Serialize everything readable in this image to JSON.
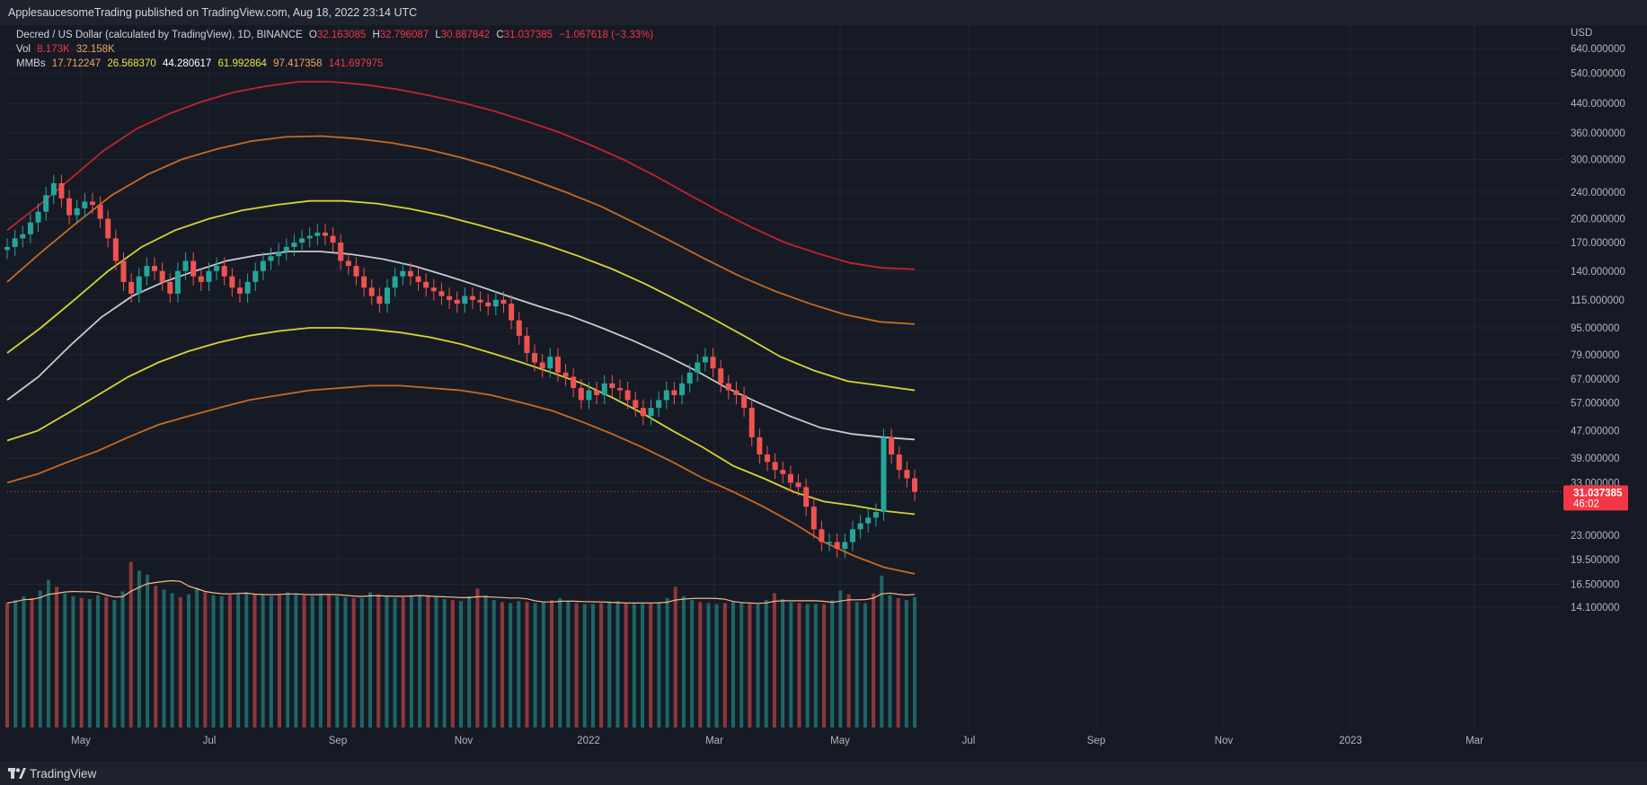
{
  "header": {
    "published": "ApplesaucesomeTrading published on TradingView.com, Aug 18, 2022 23:14 UTC"
  },
  "legend": {
    "symbol": "Decred / US Dollar (calculated by TradingView), 1D, BINANCE",
    "o_label": "O",
    "o": "32.163085",
    "h_label": "H",
    "h": "32.796087",
    "l_label": "L",
    "l": "30.887842",
    "c_label": "C",
    "c": "31.037385",
    "change": "−1.067618 (−3.33%)",
    "vol_label": "Vol",
    "vol1": "8.173K",
    "vol2": "32.158K",
    "mmbs_label": "MMBs",
    "mmbs": [
      "17.712247",
      "26.568370",
      "44.280617",
      "61.992864",
      "97.417358",
      "141.697975"
    ]
  },
  "price_axis": {
    "currency": "USD",
    "last_price": "31.037385",
    "countdown": "46:02"
  },
  "branding": {
    "name": "TradingView"
  },
  "colors": {
    "background": "#161a25",
    "up": "#26a69a",
    "down": "#ef5350",
    "band_red": "#c2242c",
    "band_orange": "#c96a1e",
    "band_yellow": "#d6d431",
    "band_white": "#c9c9d1",
    "price_line": "#f23645",
    "volume_ma": "#f5b78a"
  },
  "chart_data": {
    "type": "candlestick",
    "scale": "log",
    "y_ticks": [
      "640.000000",
      "540.000000",
      "440.000000",
      "360.000000",
      "300.000000",
      "240.000000",
      "200.000000",
      "170.000000",
      "140.000000",
      "115.000000",
      "95.000000",
      "79.000000",
      "67.000000",
      "57.000000",
      "47.000000",
      "39.000000",
      "33.000000",
      "23.000000",
      "19.500000",
      "16.500000",
      "14.100000"
    ],
    "x_ticks": [
      "May",
      "Jul",
      "Sep",
      "Nov",
      "2022",
      "Mar",
      "May",
      "Jul",
      "Sep",
      "Nov",
      "2023",
      "Mar"
    ],
    "last_price": 31.037385,
    "series": [
      {
        "name": "Decred / US Dollar",
        "values": [
          165,
          175,
          180,
          195,
          210,
          235,
          255,
          230,
          205,
          215,
          225,
          220,
          200,
          175,
          150,
          130,
          120,
          135,
          145,
          140,
          130,
          120,
          140,
          150,
          135,
          130,
          140,
          145,
          135,
          125,
          120,
          130,
          140,
          150,
          155,
          160,
          165,
          170,
          175,
          178,
          182,
          178,
          170,
          150,
          145,
          135,
          125,
          118,
          112,
          125,
          135,
          140,
          135,
          130,
          125,
          122,
          118,
          115,
          112,
          118,
          115,
          113,
          110,
          115,
          112,
          100,
          90,
          80,
          75,
          72,
          78,
          70,
          68,
          63,
          58,
          62,
          60,
          65,
          63,
          62,
          58,
          55,
          52,
          55,
          58,
          62,
          60,
          65,
          70,
          75,
          78,
          72,
          65,
          62,
          60,
          55,
          45,
          40,
          38,
          36,
          35,
          33,
          32,
          28,
          24,
          22,
          22,
          21,
          22,
          24,
          25,
          26,
          27,
          45,
          40,
          36,
          34,
          31
        ]
      },
      {
        "name": "Volume",
        "values": [
          14.5,
          14.8,
          15.2,
          15.0,
          15.8,
          17.0,
          16.2,
          15.5,
          15.2,
          15.0,
          14.9,
          15.3,
          15.1,
          14.8,
          15.7,
          19.2,
          18.1,
          17.6,
          16.3,
          15.9,
          15.5,
          15.1,
          15.4,
          16.1,
          15.6,
          15.3,
          15.2,
          15.3,
          15.5,
          15.6,
          15.4,
          15.3,
          15.2,
          15.4,
          15.6,
          15.5,
          15.3,
          15.2,
          15.4,
          15.3,
          15.2,
          15.1,
          15.0,
          15.0,
          15.6,
          15.4,
          15.2,
          15.0,
          15.1,
          15.2,
          15.3,
          15.3,
          15.1,
          14.9,
          14.8,
          14.7,
          15.2,
          16.0,
          15.3,
          14.8,
          14.6,
          14.5,
          14.7,
          14.6,
          14.5,
          14.6,
          14.8,
          15.0,
          14.7,
          14.5,
          14.4,
          14.4,
          14.5,
          14.6,
          14.7,
          14.5,
          14.4,
          14.4,
          14.5,
          14.6,
          15.0,
          16.2,
          15.2,
          14.8,
          14.6,
          14.5,
          14.4,
          14.5,
          14.6,
          14.5,
          14.4,
          14.4,
          14.8,
          15.5,
          14.9,
          14.6,
          14.5,
          14.4,
          14.4,
          14.4,
          14.8,
          15.8,
          15.4,
          14.6,
          14.5,
          15.5,
          17.5,
          15.3,
          15.0,
          14.8,
          15.1
        ]
      },
      {
        "name": "MMBs 17.712247",
        "values": [
          33,
          35,
          38,
          41,
          45,
          49,
          52,
          55,
          58,
          60,
          62,
          63,
          64,
          64,
          63,
          62,
          60,
          57,
          54,
          50,
          46,
          42,
          38,
          34,
          31,
          28,
          25,
          22,
          20,
          18.5,
          17.7
        ]
      },
      {
        "name": "MMBs 26.568370",
        "values": [
          44,
          47,
          53,
          60,
          68,
          75,
          81,
          86,
          90,
          93,
          95,
          95,
          94,
          92,
          89,
          85,
          80,
          75,
          70,
          65,
          59,
          53,
          47,
          42,
          37,
          34,
          31,
          29,
          28.2,
          27.2,
          26.6
        ]
      },
      {
        "name": "MMBs 44.280617",
        "values": [
          58,
          68,
          84,
          102,
          118,
          130,
          140,
          150,
          156,
          160,
          160,
          157,
          152,
          145,
          136,
          127,
          118,
          110,
          103,
          95,
          87,
          79,
          71,
          63,
          57,
          52,
          48,
          46,
          45,
          44.3
        ]
      },
      {
        "name": "MMBs 61.992864",
        "values": [
          80,
          95,
          115,
          140,
          165,
          185,
          200,
          212,
          220,
          226,
          226,
          222,
          214,
          204,
          192,
          180,
          168,
          155,
          142,
          128,
          114,
          101,
          89,
          78,
          71,
          66,
          64,
          62
        ]
      },
      {
        "name": "MMBs 97.417358",
        "values": [
          130,
          160,
          195,
          235,
          270,
          300,
          322,
          340,
          350,
          352,
          346,
          336,
          322,
          304,
          284,
          262,
          240,
          218,
          194,
          172,
          152,
          135,
          122,
          112,
          104,
          99,
          97.4
        ]
      },
      {
        "name": "MMBs 141.697975",
        "values": [
          185,
          220,
          265,
          320,
          370,
          410,
          445,
          475,
          495,
          510,
          510,
          500,
          485,
          465,
          443,
          418,
          390,
          362,
          331,
          300,
          268,
          237,
          210,
          188,
          170,
          158,
          148,
          143,
          141.7
        ]
      }
    ]
  }
}
